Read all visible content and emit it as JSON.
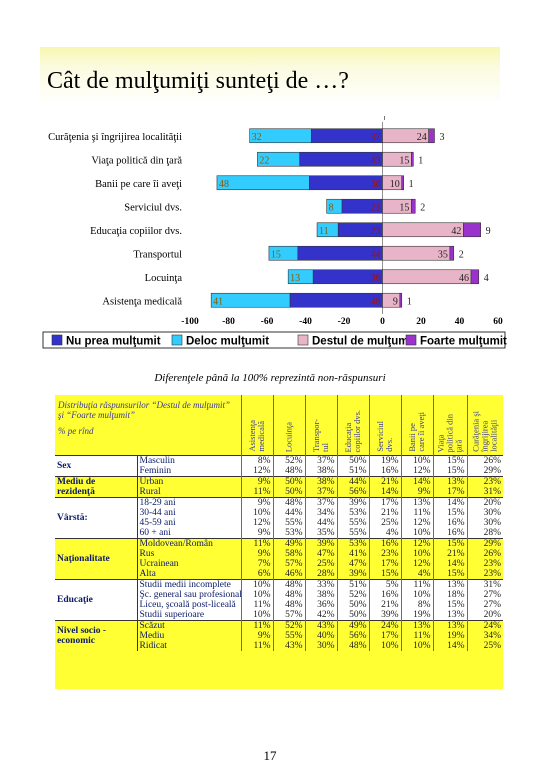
{
  "title": "Cât de mulţumiţi sunteţi de …?",
  "chart_data": {
    "type": "bar",
    "stacked": "diverging",
    "categories": [
      "Curăţenia şi îngrijirea localităţii",
      "Viaţa politică din ţară",
      "Banii pe care îi aveţi",
      "Serviciul dvs.",
      "Educaţia copiilor dvs.",
      "Transportul",
      "Locuinţa",
      "Asistenţa medicală"
    ],
    "series": [
      {
        "name": "Nu prea mulţumit",
        "color": "#3333cc",
        "values": [
          -37,
          -43,
          -38,
          -21,
          -23,
          -44,
          -36,
          -48
        ]
      },
      {
        "name": "Deloc mulţumit",
        "color": "#33ccff",
        "values": [
          -32,
          -22,
          -48,
          -8,
          -11,
          -15,
          -13,
          -41
        ]
      },
      {
        "name": "Destul de mulţumit",
        "color": "#e8b4c8",
        "values": [
          24,
          15,
          10,
          15,
          42,
          35,
          46,
          9
        ]
      },
      {
        "name": "Foarte mulţumit",
        "color": "#9933cc",
        "values": [
          3,
          1,
          1,
          2,
          9,
          2,
          4,
          1
        ]
      }
    ],
    "labels": {
      "Deloc mulţumit": [
        32,
        22,
        48,
        8,
        11,
        15,
        13,
        41
      ],
      "Nu prea mulţumit": [
        37,
        43,
        38,
        21,
        23,
        44,
        36,
        48
      ],
      "Destul de mulţumit": [
        24,
        15,
        10,
        15,
        42,
        35,
        46,
        9
      ],
      "Foarte mulţumit": [
        3,
        1,
        1,
        2,
        9,
        2,
        4,
        1
      ]
    },
    "xticks": [
      "-100",
      "-80",
      "-60",
      "-40",
      "-20",
      "0",
      "20",
      "40",
      "60"
    ],
    "xlim": [
      -100,
      60
    ],
    "legend_position": "bottom"
  },
  "note": "Diferenţele până la 100% reprezintă non-răspunsuri",
  "table": {
    "header_text": "Distribuţia răspunsurilor “Destul de mulţumit” şi “Foarte mulţumit”",
    "per_row": "% pe rînd",
    "columns": [
      "Asistenţa\nmedicală",
      "Locuinţa",
      "Transpor-\ntul",
      "Educaţia\ncopiilor dvs.",
      "Serviciul\ndvs.",
      "Banii pe\ncare îi aveţi",
      "Viaţa\npolitică din\nţară",
      "Curăţenia şi\nîngrijirea\nlocalităţii"
    ],
    "groups": [
      {
        "name": "Sex",
        "color": "w",
        "rows": [
          {
            "label": "Masculin",
            "values": [
              "8%",
              "52%",
              "37%",
              "50%",
              "19%",
              "10%",
              "15%",
              "26%"
            ]
          },
          {
            "label": "Feminin",
            "values": [
              "12%",
              "48%",
              "38%",
              "51%",
              "16%",
              "12%",
              "15%",
              "29%"
            ]
          }
        ]
      },
      {
        "name": "Mediu de rezidenţă",
        "color": "y",
        "rows": [
          {
            "label": "Urban",
            "values": [
              "9%",
              "50%",
              "38%",
              "44%",
              "21%",
              "14%",
              "13%",
              "23%"
            ]
          },
          {
            "label": "Rural",
            "values": [
              "11%",
              "50%",
              "37%",
              "56%",
              "14%",
              "9%",
              "17%",
              "31%"
            ]
          }
        ]
      },
      {
        "name": "Vârstă:",
        "color": "w",
        "rows": [
          {
            "label": "18-29 ani",
            "values": [
              "9%",
              "48%",
              "37%",
              "39%",
              "17%",
              "13%",
              "14%",
              "20%"
            ]
          },
          {
            "label": "30-44 ani",
            "values": [
              "10%",
              "44%",
              "34%",
              "53%",
              "21%",
              "11%",
              "15%",
              "30%"
            ]
          },
          {
            "label": "45-59 ani",
            "values": [
              "12%",
              "55%",
              "44%",
              "55%",
              "25%",
              "12%",
              "16%",
              "30%"
            ]
          },
          {
            "label": "60 + ani",
            "values": [
              "9%",
              "53%",
              "35%",
              "55%",
              "4%",
              "10%",
              "16%",
              "28%"
            ]
          }
        ]
      },
      {
        "name": "Naţionalitate",
        "color": "y",
        "rows": [
          {
            "label": "Moldovean/Român",
            "values": [
              "11%",
              "49%",
              "39%",
              "53%",
              "16%",
              "12%",
              "15%",
              "29%"
            ]
          },
          {
            "label": "Rus",
            "values": [
              "9%",
              "58%",
              "47%",
              "41%",
              "23%",
              "10%",
              "21%",
              "26%"
            ]
          },
          {
            "label": "Ucrainean",
            "values": [
              "7%",
              "57%",
              "25%",
              "47%",
              "17%",
              "12%",
              "14%",
              "23%"
            ]
          },
          {
            "label": "Alta",
            "values": [
              "6%",
              "46%",
              "28%",
              "39%",
              "15%",
              "4%",
              "15%",
              "23%"
            ]
          }
        ]
      },
      {
        "name": "Educaţie",
        "color": "w",
        "rows": [
          {
            "label": "Studii medii incomplete",
            "values": [
              "10%",
              "48%",
              "33%",
              "51%",
              "5%",
              "11%",
              "13%",
              "31%"
            ]
          },
          {
            "label": "Şc. general sau profesională",
            "values": [
              "10%",
              "48%",
              "38%",
              "52%",
              "16%",
              "10%",
              "18%",
              "27%"
            ]
          },
          {
            "label": "Liceu, şcoală post-liceală",
            "values": [
              "11%",
              "48%",
              "36%",
              "50%",
              "21%",
              "8%",
              "15%",
              "27%"
            ]
          },
          {
            "label": "Studii superioare",
            "values": [
              "10%",
              "57%",
              "42%",
              "50%",
              "39%",
              "19%",
              "13%",
              "20%"
            ]
          }
        ]
      },
      {
        "name": "Nivel socio - economic",
        "color": "y",
        "rows": [
          {
            "label": "Scăzut",
            "values": [
              "11%",
              "52%",
              "43%",
              "49%",
              "24%",
              "13%",
              "13%",
              "24%"
            ]
          },
          {
            "label": "Mediu",
            "values": [
              "9%",
              "55%",
              "40%",
              "56%",
              "17%",
              "11%",
              "19%",
              "34%"
            ]
          },
          {
            "label": "Ridicat",
            "values": [
              "11%",
              "43%",
              "30%",
              "48%",
              "10%",
              "10%",
              "14%",
              "25%"
            ]
          }
        ]
      }
    ]
  },
  "page_number": "17"
}
